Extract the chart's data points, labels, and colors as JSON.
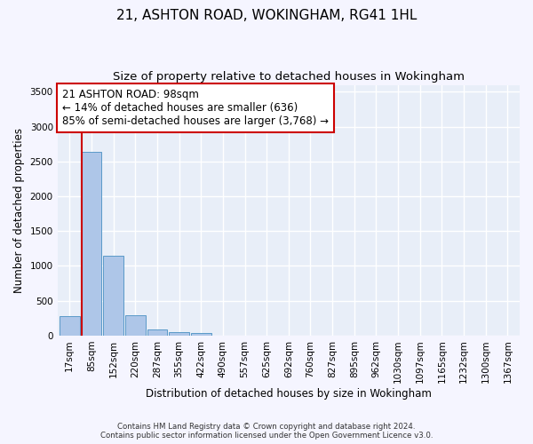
{
  "title": "21, ASHTON ROAD, WOKINGHAM, RG41 1HL",
  "subtitle": "Size of property relative to detached houses in Wokingham",
  "xlabel": "Distribution of detached houses by size in Wokingham",
  "ylabel": "Number of detached properties",
  "footer_line1": "Contains HM Land Registry data © Crown copyright and database right 2024.",
  "footer_line2": "Contains public sector information licensed under the Open Government Licence v3.0.",
  "bin_labels": [
    "17sqm",
    "85sqm",
    "152sqm",
    "220sqm",
    "287sqm",
    "355sqm",
    "422sqm",
    "490sqm",
    "557sqm",
    "625sqm",
    "692sqm",
    "760sqm",
    "827sqm",
    "895sqm",
    "962sqm",
    "1030sqm",
    "1097sqm",
    "1165sqm",
    "1232sqm",
    "1300sqm",
    "1367sqm"
  ],
  "bar_values": [
    280,
    2640,
    1140,
    290,
    90,
    45,
    30,
    0,
    0,
    0,
    0,
    0,
    0,
    0,
    0,
    0,
    0,
    0,
    0,
    0,
    0
  ],
  "bar_color": "#aec6e8",
  "bar_edge_color": "#5a9ac8",
  "vline_color": "#cc0000",
  "annotation_text": "21 ASHTON ROAD: 98sqm\n← 14% of detached houses are smaller (636)\n85% of semi-detached houses are larger (3,768) →",
  "annotation_box_color": "#ffffff",
  "annotation_box_edge": "#cc0000",
  "annotation_fontsize": 8.5,
  "ylim": [
    0,
    3600
  ],
  "yticks": [
    0,
    500,
    1000,
    1500,
    2000,
    2500,
    3000,
    3500
  ],
  "background_color": "#e8eef8",
  "grid_color": "#ffffff",
  "title_fontsize": 11,
  "subtitle_fontsize": 9.5,
  "xlabel_fontsize": 8.5,
  "ylabel_fontsize": 8.5,
  "tick_fontsize": 7.5
}
